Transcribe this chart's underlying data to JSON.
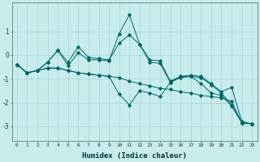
{
  "xlabel": "Humidex (Indice chaleur)",
  "ylabel": "",
  "background_color": "#c8ecec",
  "grid_color": "#a8d8d8",
  "line_color": "#006666",
  "xlim": [
    -0.5,
    23.5
  ],
  "ylim": [
    -3.6,
    2.2
  ],
  "yticks": [
    -3,
    -2,
    -1,
    0,
    1
  ],
  "xticks": [
    0,
    1,
    2,
    3,
    4,
    5,
    6,
    7,
    8,
    9,
    10,
    11,
    12,
    13,
    14,
    15,
    16,
    17,
    18,
    19,
    20,
    21,
    22,
    23
  ],
  "series": [
    [
      -0.4,
      -0.75,
      -0.65,
      -0.3,
      0.2,
      -0.3,
      0.35,
      -0.1,
      -0.15,
      -0.2,
      0.5,
      0.85,
      0.45,
      -0.2,
      -0.25,
      -1.1,
      -0.9,
      -0.85,
      -0.9,
      -1.2,
      -1.55,
      -1.35,
      -2.8,
      -2.9
    ],
    [
      -0.4,
      -0.75,
      -0.65,
      -0.3,
      0.2,
      -0.45,
      0.1,
      -0.2,
      -0.2,
      -0.25,
      0.9,
      1.7,
      0.45,
      -0.3,
      -0.35,
      -1.15,
      -0.9,
      -0.9,
      -0.95,
      -1.25,
      -1.6,
      -2.1,
      -2.85,
      -2.9
    ],
    [
      -0.4,
      -0.75,
      -0.65,
      -0.55,
      -0.55,
      -0.65,
      -0.75,
      -0.8,
      -0.85,
      -0.9,
      -0.95,
      -1.1,
      -1.2,
      -1.3,
      -1.4,
      -1.45,
      -1.55,
      -1.6,
      -1.7,
      -1.75,
      -1.8,
      -1.95,
      -2.85,
      -2.9
    ],
    [
      -0.4,
      -0.75,
      -0.65,
      -0.55,
      -0.55,
      -0.65,
      -0.75,
      -0.8,
      -0.85,
      -0.9,
      -1.65,
      -2.1,
      -1.5,
      -1.6,
      -1.75,
      -1.15,
      -0.95,
      -0.9,
      -1.2,
      -1.6,
      -1.7,
      -2.15,
      -2.85,
      -2.9
    ]
  ]
}
